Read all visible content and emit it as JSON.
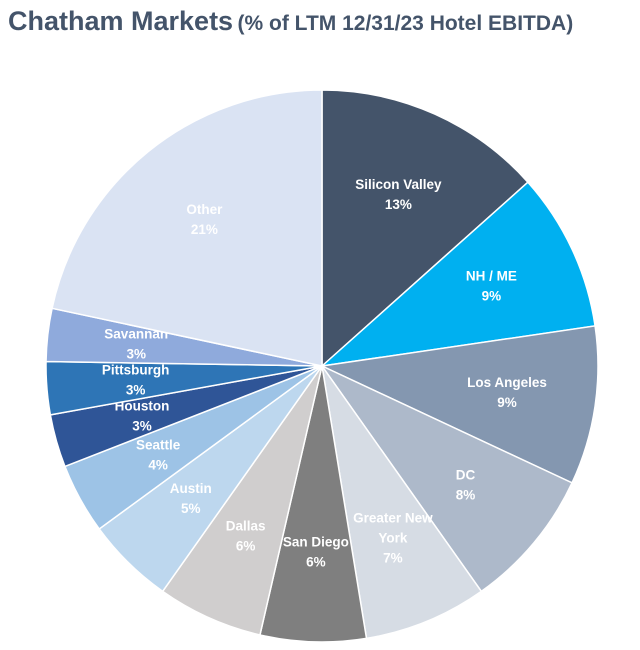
{
  "title": {
    "main": "Chatham Markets",
    "sub": "(% of LTM 12/31/23 Hotel EBITDA)"
  },
  "chart_data": {
    "type": "pie",
    "title": "Chatham Markets (% of LTM 12/31/23 Hotel EBITDA)",
    "start_angle": "12 o'clock",
    "direction": "clockwise",
    "slices": [
      {
        "label": [
          "Silicon Valley"
        ],
        "value": 13,
        "value_label": "13%",
        "color": "#44546a",
        "text_color": "#ffffff"
      },
      {
        "label": [
          "NH / ME"
        ],
        "value": 9,
        "value_label": "9%",
        "color": "#00b0f0",
        "text_color": "#ffffff"
      },
      {
        "label": [
          "Los Angeles"
        ],
        "value": 9,
        "value_label": "9%",
        "color": "#8497b0",
        "text_color": "#ffffff"
      },
      {
        "label": [
          "DC"
        ],
        "value": 8,
        "value_label": "8%",
        "color": "#adb9ca",
        "text_color": "#ffffff"
      },
      {
        "label": [
          "Greater New",
          "York"
        ],
        "value": 7,
        "value_label": "7%",
        "color": "#d6dce4",
        "text_color": "#ffffff"
      },
      {
        "label": [
          "San Diego"
        ],
        "value": 6,
        "value_label": "6%",
        "color": "#7f7f7f",
        "text_color": "#ffffff"
      },
      {
        "label": [
          "Dallas"
        ],
        "value": 6,
        "value_label": "6%",
        "color": "#d0cece",
        "text_color": "#ffffff"
      },
      {
        "label": [
          "Austin"
        ],
        "value": 5,
        "value_label": "5%",
        "color": "#bdd7ee",
        "text_color": "#ffffff"
      },
      {
        "label": [
          "Seattle"
        ],
        "value": 4,
        "value_label": "4%",
        "color": "#9dc3e6",
        "text_color": "#ffffff"
      },
      {
        "label": [
          "Houston"
        ],
        "value": 3,
        "value_label": "3%",
        "color": "#2f5597",
        "text_color": "#ffffff"
      },
      {
        "label": [
          "Pittsburgh"
        ],
        "value": 3,
        "value_label": "3%",
        "color": "#2e75b6",
        "text_color": "#ffffff"
      },
      {
        "label": [
          "Savannah"
        ],
        "value": 3,
        "value_label": "3%",
        "color": "#8faadc",
        "text_color": "#ffffff"
      },
      {
        "label": [
          "Other"
        ],
        "value": 21,
        "value_label": "21%",
        "color": "#dae3f3",
        "text_color": "#ffffff"
      }
    ]
  }
}
